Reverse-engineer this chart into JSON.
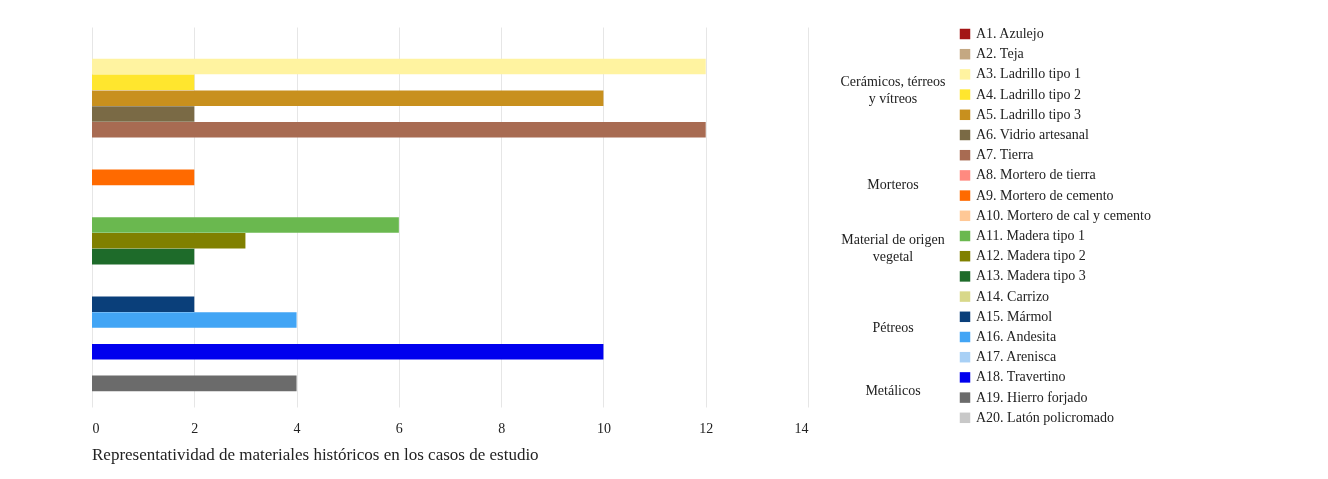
{
  "chart_data": {
    "type": "bar",
    "orientation": "horizontal",
    "title": "Representatividad de materiales históricos en los casos de estudio",
    "categories": [
      "Cerámicos, térreos y vítreos",
      "Morteros",
      "Material de origen vegetal",
      "Pétreos",
      "Metálicos"
    ],
    "xlim": [
      0,
      14
    ],
    "xticks": [
      0,
      2,
      4,
      6,
      8,
      10,
      12,
      14
    ],
    "grid": "x",
    "legend": "right",
    "series": [
      {
        "name": "A1. Azulejo",
        "color": "#a31515",
        "values": [
          null,
          null,
          null,
          null,
          null
        ]
      },
      {
        "name": "A2. Teja",
        "color": "#c4a882",
        "values": [
          null,
          null,
          null,
          null,
          null
        ]
      },
      {
        "name": "A3. Ladrillo tipo 1",
        "color": "#fff3a0",
        "values": [
          12,
          null,
          null,
          null,
          null
        ]
      },
      {
        "name": "A4. Ladrillo tipo 2",
        "color": "#ffe62e",
        "values": [
          2,
          null,
          null,
          null,
          null
        ]
      },
      {
        "name": "A5. Ladrillo tipo 3",
        "color": "#c8901e",
        "values": [
          10,
          null,
          null,
          null,
          null
        ]
      },
      {
        "name": "A6. Vidrio artesanal",
        "color": "#7a6a45",
        "values": [
          2,
          null,
          null,
          null,
          null
        ]
      },
      {
        "name": "A7. Tierra",
        "color": "#a86b52",
        "values": [
          12,
          null,
          null,
          null,
          null
        ]
      },
      {
        "name": "A8. Mortero de tierra",
        "color": "#ff8a80",
        "values": [
          null,
          null,
          null,
          null,
          null
        ]
      },
      {
        "name": "A9. Mortero de cemento",
        "color": "#ff6a00",
        "values": [
          null,
          2,
          null,
          null,
          null
        ]
      },
      {
        "name": "A10. Mortero de cal y cemento",
        "color": "#ffc896",
        "values": [
          null,
          null,
          null,
          null,
          null
        ]
      },
      {
        "name": "A11. Madera tipo 1",
        "color": "#6ab84f",
        "values": [
          null,
          null,
          6,
          null,
          null
        ]
      },
      {
        "name": "A12. Madera tipo 2",
        "color": "#808000",
        "values": [
          null,
          null,
          3,
          null,
          null
        ]
      },
      {
        "name": "A13. Madera tipo 3",
        "color": "#1e6b2a",
        "values": [
          null,
          null,
          2,
          null,
          null
        ]
      },
      {
        "name": "A14. Carrizo",
        "color": "#d8d88a",
        "values": [
          null,
          null,
          null,
          null,
          null
        ]
      },
      {
        "name": "A15. Mármol",
        "color": "#0a3f7a",
        "values": [
          null,
          null,
          null,
          2,
          null
        ]
      },
      {
        "name": "A16. Andesita",
        "color": "#42a5f5",
        "values": [
          null,
          null,
          null,
          4,
          null
        ]
      },
      {
        "name": "A17. Arenisca",
        "color": "#a8d0f5",
        "values": [
          null,
          null,
          null,
          null,
          null
        ]
      },
      {
        "name": "A18. Travertino",
        "color": "#0000ee",
        "values": [
          null,
          null,
          null,
          10,
          null
        ]
      },
      {
        "name": "A19. Hierro forjado",
        "color": "#6b6b6b",
        "values": [
          null,
          null,
          null,
          null,
          4
        ]
      },
      {
        "name": "A20. Latón policromado",
        "color": "#c8c8c8",
        "values": [
          null,
          null,
          null,
          null,
          null
        ]
      }
    ]
  }
}
